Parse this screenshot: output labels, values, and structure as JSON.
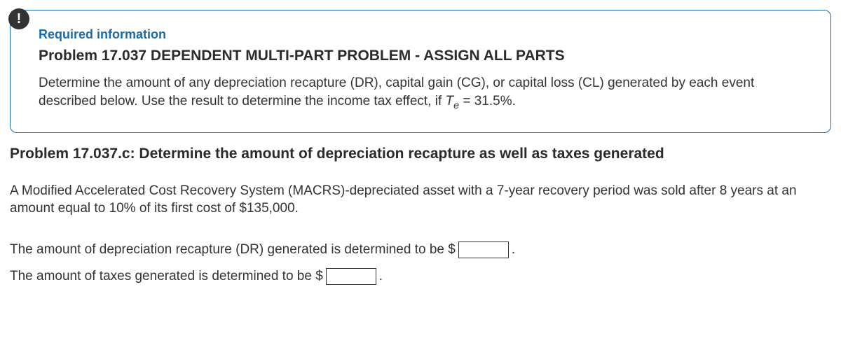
{
  "alert_icon": "!",
  "info_box": {
    "required_label": "Required information",
    "title": "Problem 17.037 DEPENDENT MULTI-PART PROBLEM - ASSIGN ALL PARTS",
    "desc_pre": "Determine the amount of any depreciation recapture (DR), capital gain (CG), or capital loss (CL) generated by each event described below. Use the result to determine the income tax effect, if ",
    "var_T": "T",
    "var_sub": "e",
    "desc_post": " = 31.5%."
  },
  "sub_problem": {
    "title": "Problem 17.037.c: Determine the amount of depreciation recapture as well as taxes generated",
    "body": "A Modified Accelerated Cost Recovery System (MACRS)-depreciated asset with a 7-year recovery period was sold after 8 years at an amount equal to 10% of its first cost of $135,000."
  },
  "answers": {
    "line1_pre": "The amount of depreciation recapture (DR) generated is determined to be $",
    "line1_post": ".",
    "line1_width": 72,
    "line2_pre": "The amount of taxes generated is determined to be $",
    "line2_post": ".",
    "line2_width": 72
  },
  "colors": {
    "accent": "#1a6ba8",
    "badge_bg": "#333333",
    "text": "#333333"
  }
}
